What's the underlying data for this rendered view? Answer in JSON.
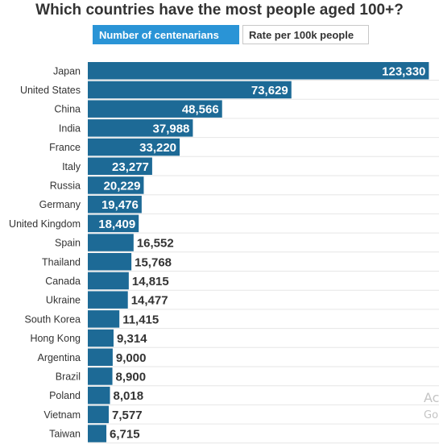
{
  "chart_data": {
    "type": "bar",
    "orientation": "horizontal",
    "title": "Which countries have the most people aged 100+?",
    "categories": [
      "Japan",
      "United States",
      "China",
      "India",
      "France",
      "Italy",
      "Russia",
      "Germany",
      "United Kingdom",
      "Spain",
      "Thailand",
      "Canada",
      "Ukraine",
      "South Korea",
      "Hong Kong",
      "Argentina",
      "Brazil",
      "Poland",
      "Vietnam",
      "Taiwan"
    ],
    "values": [
      123330,
      73629,
      48566,
      37988,
      33220,
      23277,
      20229,
      19476,
      18409,
      16552,
      15768,
      14815,
      14477,
      11415,
      9314,
      9000,
      8900,
      8018,
      7577,
      6715
    ],
    "value_labels": [
      "123,330",
      "73,629",
      "48,566",
      "37,988",
      "33,220",
      "23,277",
      "20,229",
      "19,476",
      "18,409",
      "16,552",
      "15,768",
      "14,815",
      "14,477",
      "11,415",
      "9,314",
      "9,000",
      "8,900",
      "8,018",
      "7,577",
      "6,715"
    ],
    "xlim": [
      0,
      127000
    ],
    "grid": true,
    "bar_color": "#1d6a96",
    "inside_label_color": "#ffffff",
    "outside_label_color": "#333333"
  },
  "toggles": {
    "count_label": "Number of centenarians",
    "rate_label": "Rate per 100k people"
  },
  "watermark": {
    "line1": "Ac",
    "line2": "Go"
  },
  "colors": {
    "accent": "#2a94d6",
    "bar": "#1d6a96",
    "text": "#333333"
  }
}
